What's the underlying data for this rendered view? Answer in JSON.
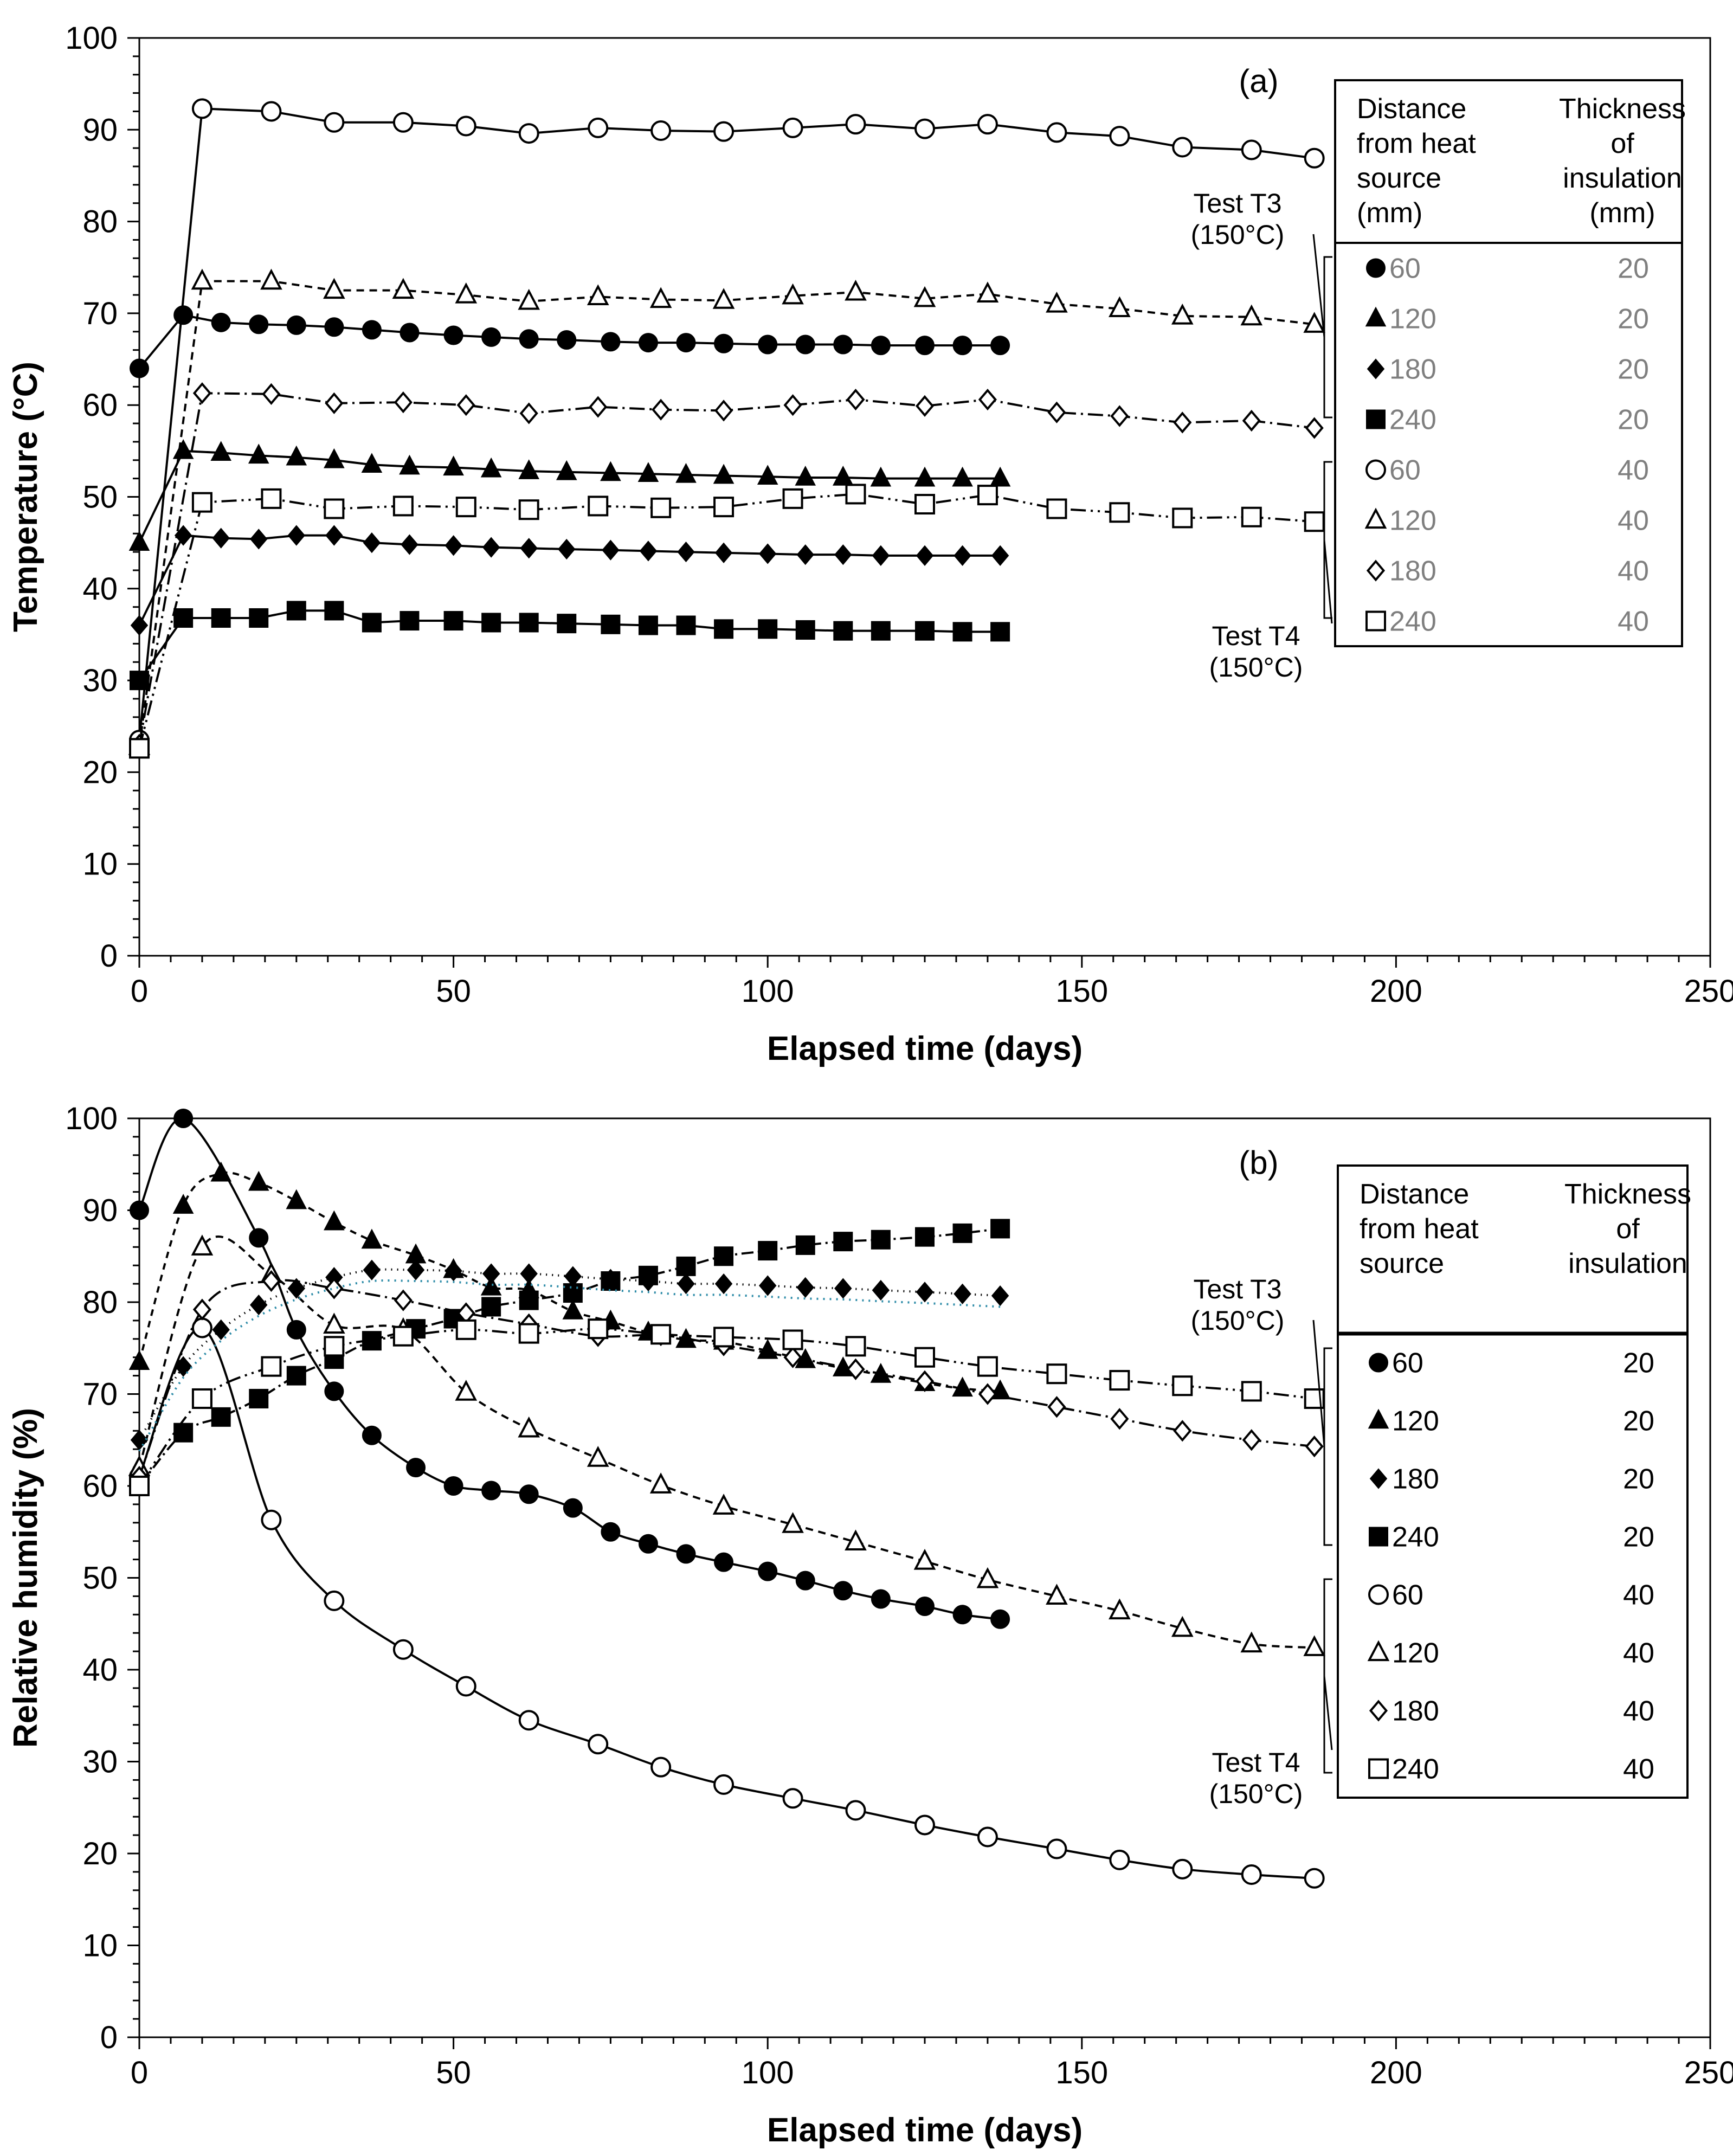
{
  "chart_data": [
    {
      "type": "line",
      "panel_label": "(a)",
      "xlabel": "Elapsed time (days)",
      "ylabel": "Temperature (°C)",
      "xlim": [
        0,
        250
      ],
      "ylim": [
        0,
        100
      ],
      "xticks": [
        "0",
        "50",
        "100",
        "150",
        "200",
        "250"
      ],
      "yticks": [
        "0",
        "10",
        "20",
        "30",
        "40",
        "50",
        "60",
        "70",
        "80",
        "90",
        "100"
      ],
      "test_labels": [
        {
          "name": "Test T3",
          "temp": "(150°C)"
        },
        {
          "name": "Test T4",
          "temp": "(150°C)"
        }
      ],
      "legend": {
        "header_distance": [
          "Distance",
          "from heat",
          "source",
          "(mm)"
        ],
        "header_thickness": [
          "Thickness",
          "of",
          "insulation",
          "(mm)"
        ]
      },
      "series": [
        {
          "name": "60",
          "thickness": "20",
          "marker": "circle",
          "filled": true,
          "dash": "",
          "curve": false,
          "x": [
            0,
            7,
            13,
            19,
            25,
            31,
            37,
            43,
            50,
            56,
            62,
            68,
            75,
            81,
            87,
            93,
            100,
            106,
            112,
            118,
            125,
            131,
            137
          ],
          "y": [
            64,
            69.8,
            69,
            68.8,
            68.7,
            68.5,
            68.2,
            67.9,
            67.6,
            67.4,
            67.2,
            67.1,
            66.9,
            66.8,
            66.8,
            66.7,
            66.6,
            66.6,
            66.6,
            66.5,
            66.5,
            66.5,
            66.5
          ]
        },
        {
          "name": "120",
          "thickness": "20",
          "marker": "triangle",
          "filled": true,
          "dash": "",
          "curve": false,
          "x": [
            0,
            7,
            13,
            19,
            25,
            31,
            37,
            43,
            50,
            56,
            62,
            68,
            75,
            81,
            87,
            93,
            100,
            106,
            112,
            118,
            125,
            131,
            137
          ],
          "y": [
            45,
            55,
            54.8,
            54.5,
            54.3,
            54,
            53.5,
            53.3,
            53.2,
            53,
            52.8,
            52.7,
            52.6,
            52.5,
            52.4,
            52.3,
            52.2,
            52.1,
            52.1,
            52,
            52,
            52,
            52
          ]
        },
        {
          "name": "180",
          "thickness": "20",
          "marker": "diamond",
          "filled": true,
          "dash": "",
          "curve": false,
          "x": [
            0,
            7,
            13,
            19,
            25,
            31,
            37,
            43,
            50,
            56,
            62,
            68,
            75,
            81,
            87,
            93,
            100,
            106,
            112,
            118,
            125,
            131,
            137
          ],
          "y": [
            36,
            45.8,
            45.5,
            45.4,
            45.8,
            45.8,
            45,
            44.8,
            44.7,
            44.5,
            44.4,
            44.3,
            44.2,
            44.1,
            44,
            43.9,
            43.8,
            43.7,
            43.7,
            43.6,
            43.6,
            43.6,
            43.6
          ]
        },
        {
          "name": "240",
          "thickness": "20",
          "marker": "square",
          "filled": true,
          "dash": "",
          "curve": false,
          "x": [
            0,
            7,
            13,
            19,
            25,
            31,
            37,
            43,
            50,
            56,
            62,
            68,
            75,
            81,
            87,
            93,
            100,
            106,
            112,
            118,
            125,
            131,
            137
          ],
          "y": [
            30,
            36.8,
            36.8,
            36.8,
            37.6,
            37.6,
            36.3,
            36.5,
            36.5,
            36.3,
            36.3,
            36.2,
            36.1,
            36,
            36,
            35.6,
            35.6,
            35.5,
            35.4,
            35.4,
            35.4,
            35.3,
            35.3
          ]
        },
        {
          "name": "60",
          "thickness": "40",
          "marker": "circle",
          "filled": false,
          "dash": "",
          "curve": false,
          "x": [
            0,
            10,
            21,
            31,
            42,
            52,
            62,
            73,
            83,
            93,
            104,
            114,
            125,
            135,
            146,
            156,
            166,
            177,
            187
          ],
          "y": [
            23.5,
            92.3,
            92,
            90.8,
            90.8,
            90.4,
            89.6,
            90.2,
            89.9,
            89.8,
            90.2,
            90.6,
            90.1,
            90.6,
            89.7,
            89.3,
            88.1,
            87.8,
            86.9
          ]
        },
        {
          "name": "120",
          "thickness": "40",
          "marker": "triangle",
          "filled": false,
          "dash": "14,10",
          "curve": false,
          "x": [
            0,
            10,
            21,
            31,
            42,
            52,
            62,
            73,
            83,
            93,
            104,
            114,
            125,
            135,
            146,
            156,
            166,
            177,
            187
          ],
          "y": [
            22.8,
            73.5,
            73.5,
            72.5,
            72.5,
            72,
            71.3,
            71.8,
            71.5,
            71.4,
            71.9,
            72.3,
            71.6,
            72.1,
            71,
            70.5,
            69.7,
            69.6,
            68.8
          ]
        },
        {
          "name": "180",
          "thickness": "40",
          "marker": "diamond",
          "filled": false,
          "dash": "28,9,4,9",
          "curve": false,
          "x": [
            0,
            10,
            21,
            31,
            42,
            52,
            62,
            73,
            83,
            93,
            104,
            114,
            125,
            135,
            146,
            156,
            166,
            177,
            187
          ],
          "y": [
            23,
            61.3,
            61.2,
            60.2,
            60.3,
            60,
            59.1,
            59.8,
            59.5,
            59.4,
            60,
            60.6,
            59.9,
            60.6,
            59.2,
            58.8,
            58.1,
            58.3,
            57.5
          ]
        },
        {
          "name": "240",
          "thickness": "40",
          "marker": "square",
          "filled": false,
          "dash": "28,9,4,9,4,9",
          "curve": false,
          "x": [
            0,
            10,
            21,
            31,
            42,
            52,
            62,
            73,
            83,
            93,
            104,
            114,
            125,
            135,
            146,
            156,
            166,
            177,
            187
          ],
          "y": [
            22.6,
            49.4,
            49.8,
            48.7,
            49,
            48.9,
            48.6,
            49,
            48.8,
            48.9,
            49.8,
            50.3,
            49.2,
            50.2,
            48.7,
            48.3,
            47.7,
            47.8,
            47.3
          ]
        }
      ]
    },
    {
      "type": "line",
      "panel_label": "(b)",
      "xlabel": "Elapsed time (days)",
      "ylabel": "Relative humidity (%)",
      "xlim": [
        0,
        250
      ],
      "ylim": [
        0,
        100
      ],
      "xticks": [
        "0",
        "50",
        "100",
        "150",
        "200",
        "250"
      ],
      "yticks": [
        "0",
        "10",
        "20",
        "30",
        "40",
        "50",
        "60",
        "70",
        "80",
        "90",
        "100"
      ],
      "test_labels": [
        {
          "name": "Test T3",
          "temp": "(150°C)"
        },
        {
          "name": "Test T4",
          "temp": "(150°C)"
        }
      ],
      "legend": {
        "header_distance": [
          "Distance",
          "from heat",
          "source"
        ],
        "header_thickness": [
          "Thickness",
          "of",
          "insulation"
        ]
      },
      "series": [
        {
          "name": "60",
          "thickness": "20",
          "marker": "circle",
          "filled": true,
          "dash": "",
          "curve": true,
          "x": [
            0,
            7,
            19,
            25,
            31,
            37,
            44,
            50,
            56,
            62,
            69,
            75,
            81,
            87,
            93,
            100,
            106,
            112,
            118,
            125,
            131,
            137
          ],
          "y": [
            90,
            100,
            87,
            77,
            70.3,
            65.5,
            62,
            60,
            59.5,
            59.1,
            57.6,
            55,
            53.7,
            52.6,
            51.7,
            50.7,
            49.7,
            48.6,
            47.7,
            46.9,
            46,
            45.5
          ]
        },
        {
          "name": "120",
          "thickness": "20",
          "marker": "triangle",
          "filled": true,
          "dash": "12,10",
          "curve": true,
          "x": [
            0,
            7,
            13,
            19,
            25,
            31,
            37,
            44,
            50,
            56,
            62,
            69,
            75,
            81,
            87,
            93,
            100,
            106,
            112,
            118,
            125,
            131,
            137
          ],
          "y": [
            73.5,
            90.5,
            94,
            93,
            91,
            88.7,
            86.7,
            85.1,
            83.5,
            81.6,
            81.3,
            79,
            77.9,
            76.7,
            75.9,
            75.7,
            74.7,
            73.7,
            72.8,
            72.1,
            71.2,
            70.6,
            70.3
          ]
        },
        {
          "name": "180",
          "thickness": "20",
          "marker": "diamond",
          "filled": true,
          "dash": "2,9",
          "curve": true,
          "x": [
            0,
            7,
            13,
            19,
            25,
            31,
            37,
            44,
            50,
            56,
            62,
            69,
            75,
            81,
            87,
            93,
            100,
            106,
            112,
            118,
            125,
            131,
            137
          ],
          "y": [
            65,
            73,
            77,
            79.7,
            81.5,
            82.7,
            83.5,
            83.5,
            83.4,
            83.1,
            83.1,
            82.8,
            82.5,
            82.3,
            82,
            82,
            81.8,
            81.6,
            81.5,
            81.3,
            81.1,
            80.9,
            80.7
          ]
        },
        {
          "name": "240",
          "thickness": "20",
          "marker": "square",
          "filled": true,
          "dash": "22,8,4,8",
          "curve": true,
          "x": [
            0,
            7,
            13,
            19,
            25,
            31,
            37,
            44,
            50,
            56,
            62,
            69,
            75,
            81,
            87,
            93,
            100,
            106,
            112,
            118,
            125,
            131,
            137
          ],
          "y": [
            60,
            65.8,
            67.5,
            69.5,
            72,
            73.8,
            75.8,
            77.1,
            78.2,
            79.5,
            80.2,
            81,
            82.3,
            82.9,
            83.9,
            85,
            85.6,
            86.2,
            86.6,
            86.8,
            87.1,
            87.5,
            88
          ]
        },
        {
          "name": "60",
          "thickness": "40",
          "marker": "circle",
          "filled": false,
          "dash": "",
          "curve": true,
          "x": [
            0,
            10,
            21,
            31,
            42,
            52,
            62,
            73,
            83,
            93,
            104,
            114,
            125,
            135,
            146,
            156,
            166,
            177,
            187
          ],
          "y": [
            61,
            77.2,
            56.3,
            47.5,
            42.2,
            38.2,
            34.5,
            31.9,
            29.4,
            27.5,
            26,
            24.7,
            23.1,
            21.8,
            20.5,
            19.3,
            18.3,
            17.7,
            17.3
          ]
        },
        {
          "name": "120",
          "thickness": "40",
          "marker": "triangle",
          "filled": false,
          "dash": "14,10",
          "curve": true,
          "x": [
            0,
            10,
            21,
            31,
            42,
            52,
            62,
            73,
            83,
            93,
            104,
            114,
            125,
            135,
            146,
            156,
            166,
            177,
            187
          ],
          "y": [
            62,
            86,
            83,
            77.5,
            77,
            70.2,
            66.2,
            63,
            60.1,
            57.8,
            55.8,
            53.9,
            51.8,
            49.8,
            48,
            46.4,
            44.5,
            42.8,
            42.4
          ]
        },
        {
          "name": "180",
          "thickness": "40",
          "marker": "diamond",
          "filled": false,
          "dash": "28,9,4,9",
          "curve": true,
          "x": [
            0,
            10,
            21,
            31,
            42,
            52,
            62,
            73,
            83,
            93,
            104,
            114,
            125,
            135,
            146,
            156,
            166,
            177,
            187
          ],
          "y": [
            61,
            79.2,
            82.3,
            81.5,
            80.2,
            78.8,
            77.6,
            76.3,
            76.4,
            75.3,
            74,
            72.7,
            71.4,
            70,
            68.6,
            67.3,
            66,
            65,
            64.3
          ]
        },
        {
          "name": "240",
          "thickness": "40",
          "marker": "square",
          "filled": false,
          "dash": "28,9,4,9,4,9",
          "curve": true,
          "x": [
            0,
            10,
            21,
            31,
            42,
            52,
            62,
            73,
            83,
            93,
            104,
            114,
            125,
            135,
            146,
            156,
            166,
            177,
            187
          ],
          "y": [
            60,
            69.5,
            73,
            75.2,
            76.3,
            77,
            76.6,
            77.1,
            76.5,
            76.2,
            75.9,
            75.2,
            74,
            73,
            72.2,
            71.5,
            70.9,
            70.3,
            69.5
          ]
        }
      ]
    }
  ]
}
